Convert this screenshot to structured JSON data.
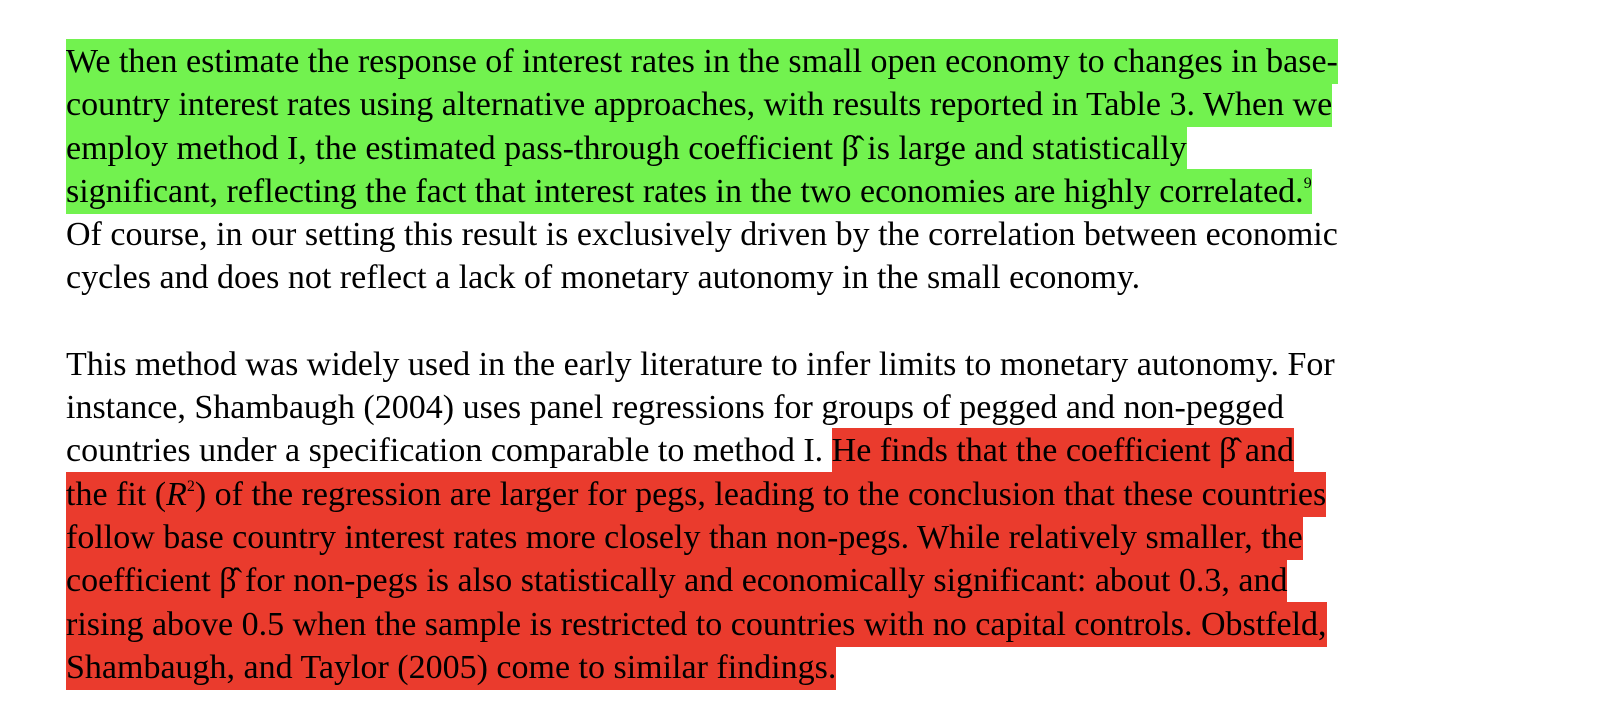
{
  "highlight_colors": {
    "green": "#72f24f",
    "red": "#ea3b2d"
  },
  "paragraph1": {
    "green_lines": [
      "We then estimate the response of interest rates in the small open economy to changes in base-",
      "country interest rates using alternative approaches, with results reported in Table 3. When we",
      "employ method I, the estimated pass-through coefficient β̂ is large and statistically",
      "significant, reflecting the fact that interest rates in the two economies are highly correlated."
    ],
    "footnote_mark": "9",
    "plain_lines": [
      "Of course, in our setting this result is exclusively driven by the correlation between economic",
      "cycles and does not reflect a lack of monetary autonomy in the small economy."
    ]
  },
  "paragraph2": {
    "plain_lines": [
      "This method was widely used in the early literature to infer limits to monetary autonomy. For",
      "instance, Shambaugh (2004) uses panel regressions for groups of pegged and non-pegged",
      "countries under a specification comparable to method I. "
    ],
    "red_first": "He finds that the coefficient β̂ and",
    "red_fit_pre": "the fit (",
    "red_fit_symbol": "R",
    "red_fit_exp": "2",
    "red_fit_post": ") of the regression are larger for pegs, leading to the conclusion that these countries",
    "red_lines": [
      "follow base country interest rates more closely than non-pegs. While relatively smaller, the",
      "coefficient β̂ for non-pegs is also statistically and economically significant: about 0.3, and",
      "rising above 0.5 when the sample is restricted to countries with no capital controls. Obstfeld,",
      "Shambaugh, and Taylor (2005) come to similar findings."
    ]
  }
}
